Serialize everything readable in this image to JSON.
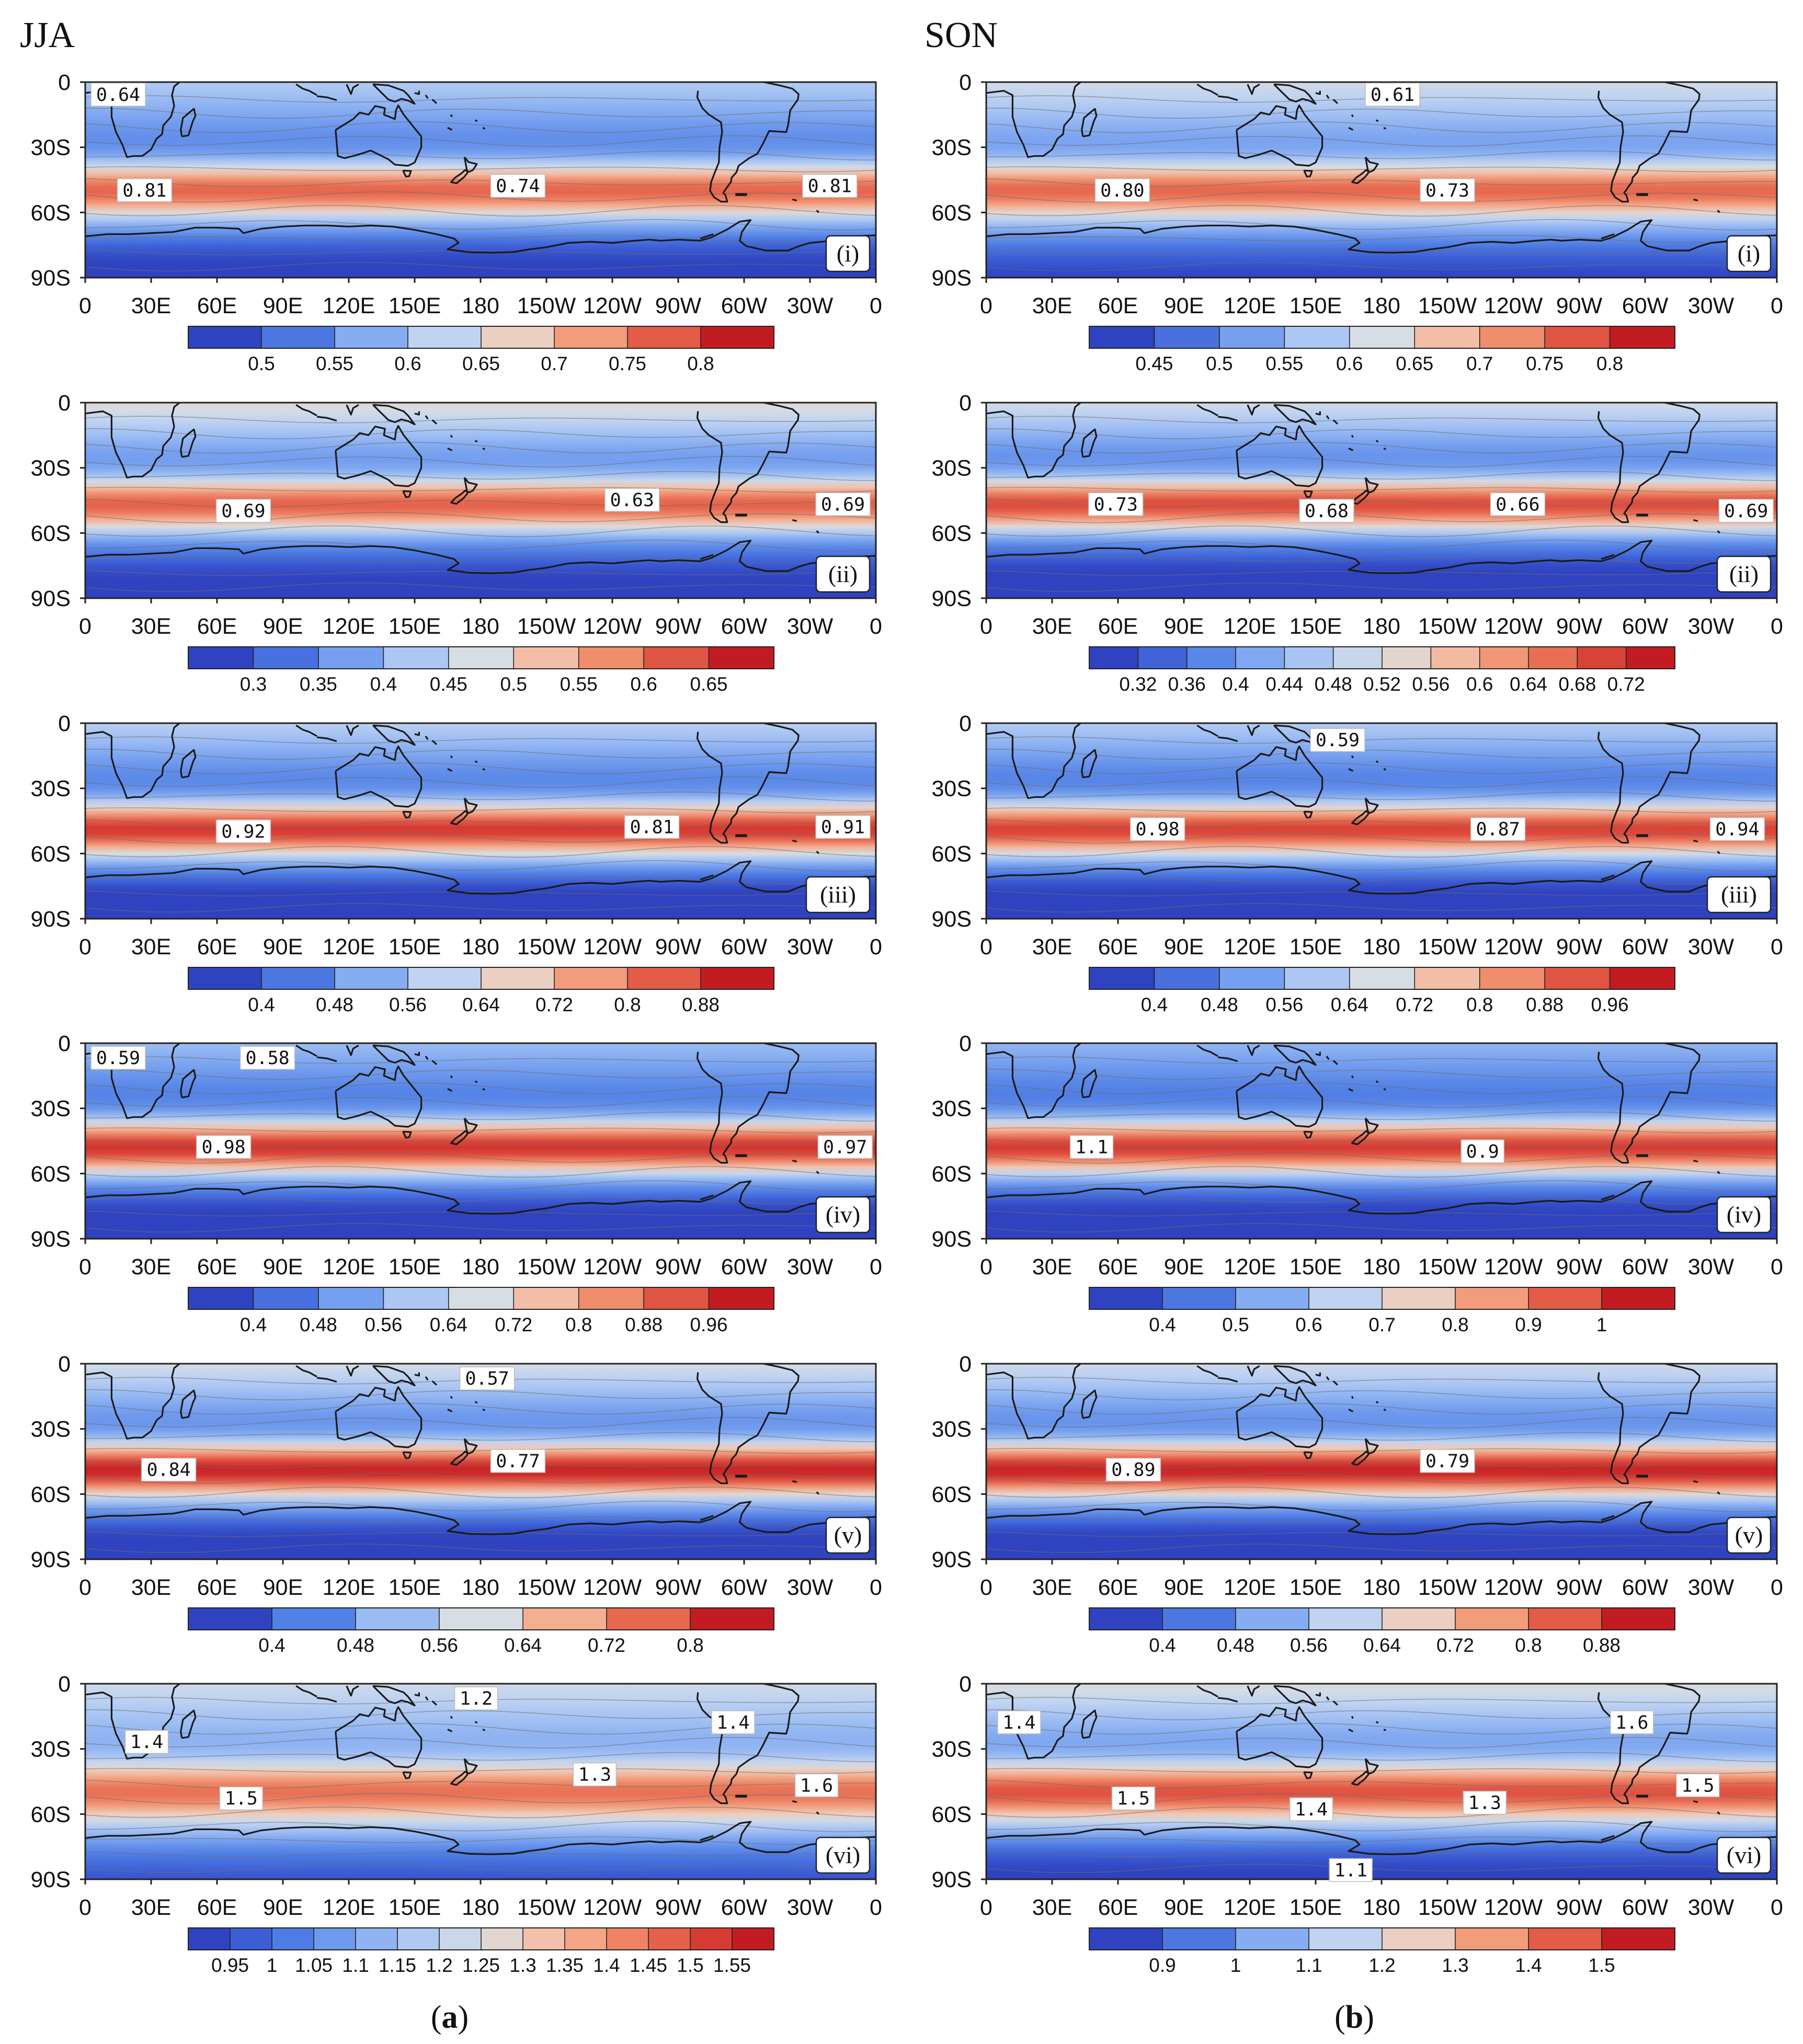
{
  "figure": {
    "columns": [
      {
        "title": "JJA",
        "sub_label_pre": "(",
        "sub_label_letter": "a",
        "sub_label_post": ")"
      },
      {
        "title": "SON",
        "sub_label_pre": "(",
        "sub_label_letter": "b",
        "sub_label_post": ")"
      }
    ],
    "colors": {
      "ramp": [
        "#2f43c0",
        "#3d5fd6",
        "#5281e6",
        "#76a0ef",
        "#9bbcf3",
        "#bcd1f2",
        "#d6dde4",
        "#efcdbb",
        "#f4af92",
        "#f08d6c",
        "#e6684f",
        "#d83f35",
        "#c21c22"
      ]
    }
  },
  "chart_data": [
    {
      "id": "a-i",
      "type": "filled-contour-map",
      "column": "JJA",
      "panel_label": "(i)",
      "xlim": [
        0,
        360
      ],
      "ylim": [
        -90,
        0
      ],
      "x_tick_labels": [
        "0",
        "30E",
        "60E",
        "90E",
        "120E",
        "150E",
        "180",
        "150W",
        "120W",
        "90W",
        "60W",
        "30W",
        "0"
      ],
      "y_tick_labels": [
        "0",
        "30S",
        "60S",
        "90S"
      ],
      "colorbar": {
        "levels": [
          0.5,
          0.55,
          0.6,
          0.65,
          0.7,
          0.75,
          0.8
        ],
        "labels": [
          "0.5",
          "0.55",
          "0.6",
          "0.65",
          "0.7",
          "0.75",
          "0.8"
        ]
      },
      "contour_labels": [
        {
          "text": "0.64",
          "lon": 15,
          "lat": -6
        },
        {
          "text": "0.81",
          "lon": 27,
          "lat": -50
        },
        {
          "text": "0.74",
          "lon": 197,
          "lat": -48
        },
        {
          "text": "0.81",
          "lon": 339,
          "lat": -48
        }
      ],
      "field": {
        "baseline": 0.49,
        "band": {
          "center_lat": -50,
          "amplitude": 0.27,
          "width": 13
        },
        "north_shift": 0.1,
        "max_color_value": 0.82
      }
    },
    {
      "id": "b-i",
      "type": "filled-contour-map",
      "column": "SON",
      "panel_label": "(i)",
      "xlim": [
        0,
        360
      ],
      "ylim": [
        -90,
        0
      ],
      "x_tick_labels": [
        "0",
        "30E",
        "60E",
        "90E",
        "120E",
        "150E",
        "180",
        "150W",
        "120W",
        "90W",
        "60W",
        "30W",
        "0"
      ],
      "y_tick_labels": [
        "0",
        "30S",
        "60S",
        "90S"
      ],
      "colorbar": {
        "levels": [
          0.45,
          0.5,
          0.55,
          0.6,
          0.65,
          0.7,
          0.75,
          0.8
        ],
        "labels": [
          "0.45",
          "0.5",
          "0.55",
          "0.6",
          "0.65",
          "0.7",
          "0.75",
          "0.8"
        ]
      },
      "contour_labels": [
        {
          "text": "0.61",
          "lon": 185,
          "lat": -6
        },
        {
          "text": "0.80",
          "lon": 62,
          "lat": -50
        },
        {
          "text": "0.73",
          "lon": 210,
          "lat": -50
        }
      ],
      "field": {
        "baseline": 0.47,
        "band": {
          "center_lat": -50,
          "amplitude": 0.28,
          "width": 13
        },
        "north_shift": 0.13,
        "max_color_value": 0.82
      }
    },
    {
      "id": "a-ii",
      "type": "filled-contour-map",
      "column": "JJA",
      "panel_label": "(ii)",
      "xlim": [
        0,
        360
      ],
      "ylim": [
        -90,
        0
      ],
      "x_tick_labels": [
        "0",
        "30E",
        "60E",
        "90E",
        "120E",
        "150E",
        "180",
        "150W",
        "120W",
        "90W",
        "60W",
        "30W",
        "0"
      ],
      "y_tick_labels": [
        "0",
        "30S",
        "60S",
        "90S"
      ],
      "colorbar": {
        "levels": [
          0.3,
          0.35,
          0.4,
          0.45,
          0.5,
          0.55,
          0.6,
          0.65
        ],
        "labels": [
          "0.3",
          "0.35",
          "0.4",
          "0.45",
          "0.5",
          "0.55",
          "0.6",
          "0.65"
        ]
      },
      "contour_labels": [
        {
          "text": "0.69",
          "lon": 72,
          "lat": -50
        },
        {
          "text": "0.63",
          "lon": 249,
          "lat": -45
        },
        {
          "text": "0.69",
          "lon": 345,
          "lat": -47
        }
      ],
      "field": {
        "baseline": 0.29,
        "band": {
          "center_lat": -47,
          "amplitude": 0.34,
          "width": 13
        },
        "north_shift": 0.2,
        "max_color_value": 0.7
      }
    },
    {
      "id": "b-ii",
      "type": "filled-contour-map",
      "column": "SON",
      "panel_label": "(ii)",
      "xlim": [
        0,
        360
      ],
      "ylim": [
        -90,
        0
      ],
      "x_tick_labels": [
        "0",
        "30E",
        "60E",
        "90E",
        "120E",
        "150E",
        "180",
        "150W",
        "120W",
        "90W",
        "60W",
        "30W",
        "0"
      ],
      "y_tick_labels": [
        "0",
        "30S",
        "60S",
        "90S"
      ],
      "colorbar": {
        "levels": [
          0.32,
          0.36,
          0.4,
          0.44,
          0.48,
          0.52,
          0.56,
          0.6,
          0.64,
          0.68,
          0.72
        ],
        "labels": [
          "0.32",
          "0.36",
          "0.4",
          "0.44",
          "0.48",
          "0.52",
          "0.56",
          "0.6",
          "0.64",
          "0.68",
          "0.72"
        ]
      },
      "contour_labels": [
        {
          "text": "0.73",
          "lon": 59,
          "lat": -47
        },
        {
          "text": "0.68",
          "lon": 155,
          "lat": -50
        },
        {
          "text": "0.66",
          "lon": 242,
          "lat": -47
        },
        {
          "text": "0.69",
          "lon": 346,
          "lat": -50
        }
      ],
      "field": {
        "baseline": 0.31,
        "band": {
          "center_lat": -47,
          "amplitude": 0.38,
          "width": 13
        },
        "north_shift": 0.19,
        "max_color_value": 0.74
      }
    },
    {
      "id": "a-iii",
      "type": "filled-contour-map",
      "column": "JJA",
      "panel_label": "(iii)",
      "xlim": [
        0,
        360
      ],
      "ylim": [
        -90,
        0
      ],
      "x_tick_labels": [
        "0",
        "30E",
        "60E",
        "90E",
        "120E",
        "150E",
        "180",
        "150W",
        "120W",
        "90W",
        "60W",
        "30W",
        "0"
      ],
      "y_tick_labels": [
        "0",
        "30S",
        "60S",
        "90S"
      ],
      "colorbar": {
        "levels": [
          0.4,
          0.48,
          0.56,
          0.64,
          0.72,
          0.8,
          0.88
        ],
        "labels": [
          "0.4",
          "0.48",
          "0.56",
          "0.64",
          "0.72",
          "0.8",
          "0.88"
        ]
      },
      "contour_labels": [
        {
          "text": "0.92",
          "lon": 72,
          "lat": -50
        },
        {
          "text": "0.81",
          "lon": 258,
          "lat": -48
        },
        {
          "text": "0.91",
          "lon": 345,
          "lat": -48
        }
      ],
      "field": {
        "baseline": 0.36,
        "band": {
          "center_lat": -49,
          "amplitude": 0.52,
          "width": 13
        },
        "north_shift": 0.2,
        "max_color_value": 0.92
      }
    },
    {
      "id": "b-iii",
      "type": "filled-contour-map",
      "column": "SON",
      "panel_label": "(iii)",
      "xlim": [
        0,
        360
      ],
      "ylim": [
        -90,
        0
      ],
      "x_tick_labels": [
        "0",
        "30E",
        "60E",
        "90E",
        "120E",
        "150E",
        "180",
        "150W",
        "120W",
        "90W",
        "60W",
        "30W",
        "0"
      ],
      "y_tick_labels": [
        "0",
        "30S",
        "60S",
        "90S"
      ],
      "colorbar": {
        "levels": [
          0.4,
          0.48,
          0.56,
          0.64,
          0.72,
          0.8,
          0.88,
          0.96
        ],
        "labels": [
          "0.4",
          "0.48",
          "0.56",
          "0.64",
          "0.72",
          "0.8",
          "0.88",
          "0.96"
        ]
      },
      "contour_labels": [
        {
          "text": "0.59",
          "lon": 160,
          "lat": -8
        },
        {
          "text": "0.98",
          "lon": 78,
          "lat": -49
        },
        {
          "text": "0.87",
          "lon": 233,
          "lat": -49
        },
        {
          "text": "0.94",
          "lon": 342,
          "lat": -49
        }
      ],
      "field": {
        "baseline": 0.36,
        "band": {
          "center_lat": -49,
          "amplitude": 0.58,
          "width": 13
        },
        "north_shift": 0.22,
        "max_color_value": 1.0
      }
    },
    {
      "id": "a-iv",
      "type": "filled-contour-map",
      "column": "JJA",
      "panel_label": "(iv)",
      "xlim": [
        0,
        360
      ],
      "ylim": [
        -90,
        0
      ],
      "x_tick_labels": [
        "0",
        "30E",
        "60E",
        "90E",
        "120E",
        "150E",
        "180",
        "150W",
        "120W",
        "90W",
        "60W",
        "30W",
        "0"
      ],
      "y_tick_labels": [
        "0",
        "30S",
        "60S",
        "90S"
      ],
      "colorbar": {
        "levels": [
          0.4,
          0.48,
          0.56,
          0.64,
          0.72,
          0.8,
          0.88,
          0.96
        ],
        "labels": [
          "0.4",
          "0.48",
          "0.56",
          "0.64",
          "0.72",
          "0.8",
          "0.88",
          "0.96"
        ]
      },
      "contour_labels": [
        {
          "text": "0.59",
          "lon": 15,
          "lat": -7
        },
        {
          "text": "0.58",
          "lon": 83,
          "lat": -7
        },
        {
          "text": "0.98",
          "lon": 63,
          "lat": -48
        },
        {
          "text": "0.97",
          "lon": 346,
          "lat": -48
        }
      ],
      "field": {
        "baseline": 0.36,
        "band": {
          "center_lat": -48,
          "amplitude": 0.6,
          "width": 13
        },
        "north_shift": 0.18,
        "max_color_value": 1.0
      }
    },
    {
      "id": "b-iv",
      "type": "filled-contour-map",
      "column": "SON",
      "panel_label": "(iv)",
      "xlim": [
        0,
        360
      ],
      "ylim": [
        -90,
        0
      ],
      "x_tick_labels": [
        "0",
        "30E",
        "60E",
        "90E",
        "120E",
        "150E",
        "180",
        "150W",
        "120W",
        "90W",
        "60W",
        "30W",
        "0"
      ],
      "y_tick_labels": [
        "0",
        "30S",
        "60S",
        "90S"
      ],
      "colorbar": {
        "levels": [
          0.4,
          0.5,
          0.6,
          0.7,
          0.8,
          0.9,
          1
        ],
        "labels": [
          "0.4",
          "0.5",
          "0.6",
          "0.7",
          "0.8",
          "0.9",
          "1"
        ]
      },
      "contour_labels": [
        {
          "text": "1.1",
          "lon": 48,
          "lat": -48
        },
        {
          "text": "0.9",
          "lon": 226,
          "lat": -50
        }
      ],
      "field": {
        "baseline": 0.34,
        "band": {
          "center_lat": -48,
          "amplitude": 0.7,
          "width": 13
        },
        "north_shift": 0.2,
        "max_color_value": 1.1
      }
    },
    {
      "id": "a-v",
      "type": "filled-contour-map",
      "column": "JJA",
      "panel_label": "(v)",
      "xlim": [
        0,
        360
      ],
      "ylim": [
        -90,
        0
      ],
      "x_tick_labels": [
        "0",
        "30E",
        "60E",
        "90E",
        "120E",
        "150E",
        "180",
        "150W",
        "120W",
        "90W",
        "60W",
        "30W",
        "0"
      ],
      "y_tick_labels": [
        "0",
        "30S",
        "60S",
        "90S"
      ],
      "colorbar": {
        "levels": [
          0.4,
          0.48,
          0.56,
          0.64,
          0.72,
          0.8
        ],
        "labels": [
          "0.4",
          "0.48",
          "0.56",
          "0.64",
          "0.72",
          "0.8"
        ]
      },
      "contour_labels": [
        {
          "text": "0.57",
          "lon": 183,
          "lat": -7
        },
        {
          "text": "0.84",
          "lon": 38,
          "lat": -49
        },
        {
          "text": "0.77",
          "lon": 197,
          "lat": -45
        }
      ],
      "field": {
        "baseline": 0.37,
        "band": {
          "center_lat": -49,
          "amplitude": 0.5,
          "width": 13
        },
        "north_shift": 0.22,
        "max_color_value": 0.88
      }
    },
    {
      "id": "b-v",
      "type": "filled-contour-map",
      "column": "SON",
      "panel_label": "(v)",
      "xlim": [
        0,
        360
      ],
      "ylim": [
        -90,
        0
      ],
      "x_tick_labels": [
        "0",
        "30E",
        "60E",
        "90E",
        "120E",
        "150E",
        "180",
        "150W",
        "120W",
        "90W",
        "60W",
        "30W",
        "0"
      ],
      "y_tick_labels": [
        "0",
        "30S",
        "60S",
        "90S"
      ],
      "colorbar": {
        "levels": [
          0.4,
          0.48,
          0.56,
          0.64,
          0.72,
          0.8,
          0.88
        ],
        "labels": [
          "0.4",
          "0.48",
          "0.56",
          "0.64",
          "0.72",
          "0.8",
          "0.88"
        ]
      },
      "contour_labels": [
        {
          "text": "0.89",
          "lon": 67,
          "lat": -49
        },
        {
          "text": "0.79",
          "lon": 210,
          "lat": -45
        }
      ],
      "field": {
        "baseline": 0.37,
        "band": {
          "center_lat": -49,
          "amplitude": 0.54,
          "width": 13
        },
        "north_shift": 0.23,
        "max_color_value": 0.92
      }
    },
    {
      "id": "a-vi",
      "type": "filled-contour-map",
      "column": "JJA",
      "panel_label": "(vi)",
      "xlim": [
        0,
        360
      ],
      "ylim": [
        -90,
        0
      ],
      "x_tick_labels": [
        "0",
        "30E",
        "60E",
        "90E",
        "120E",
        "150E",
        "180",
        "150W",
        "120W",
        "90W",
        "60W",
        "30W",
        "0"
      ],
      "y_tick_labels": [
        "0",
        "30S",
        "60S",
        "90S"
      ],
      "colorbar": {
        "levels": [
          0.95,
          1,
          1.05,
          1.1,
          1.15,
          1.2,
          1.25,
          1.3,
          1.35,
          1.4,
          1.45,
          1.5,
          1.55
        ],
        "labels": [
          "0.95",
          "1",
          "1.05",
          "1.1",
          "1.15",
          "1.2",
          "1.25",
          "1.3",
          "1.35",
          "1.4",
          "1.45",
          "1.5",
          "1.55"
        ]
      },
      "contour_labels": [
        {
          "text": "1.2",
          "lon": 178,
          "lat": -7
        },
        {
          "text": "1.4",
          "lon": 28,
          "lat": -27
        },
        {
          "text": "1.4",
          "lon": 295,
          "lat": -18
        },
        {
          "text": "1.5",
          "lon": 71,
          "lat": -53
        },
        {
          "text": "1.3",
          "lon": 232,
          "lat": -42
        },
        {
          "text": "1.6",
          "lon": 333,
          "lat": -47
        }
      ],
      "field": {
        "baseline": 1.05,
        "band": {
          "center_lat": -50,
          "amplitude": 0.42,
          "width": 14
        },
        "north_shift": 0.18,
        "max_color_value": 1.6
      }
    },
    {
      "id": "b-vi",
      "type": "filled-contour-map",
      "column": "SON",
      "panel_label": "(vi)",
      "xlim": [
        0,
        360
      ],
      "ylim": [
        -90,
        0
      ],
      "x_tick_labels": [
        "0",
        "30E",
        "60E",
        "90E",
        "120E",
        "150E",
        "180",
        "150W",
        "120W",
        "90W",
        "60W",
        "30W",
        "0"
      ],
      "y_tick_labels": [
        "0",
        "30S",
        "60S",
        "90S"
      ],
      "colorbar": {
        "levels": [
          0.9,
          1,
          1.1,
          1.2,
          1.3,
          1.4,
          1.5
        ],
        "labels": [
          "0.9",
          "1",
          "1.1",
          "1.2",
          "1.3",
          "1.4",
          "1.5"
        ]
      },
      "contour_labels": [
        {
          "text": "1.4",
          "lon": 15,
          "lat": -18
        },
        {
          "text": "1.6",
          "lon": 294,
          "lat": -18
        },
        {
          "text": "1.5",
          "lon": 67,
          "lat": -53
        },
        {
          "text": "1.4",
          "lon": 148,
          "lat": -58
        },
        {
          "text": "1.3",
          "lon": 227,
          "lat": -55
        },
        {
          "text": "1.5",
          "lon": 324,
          "lat": -47
        },
        {
          "text": "1.1",
          "lon": 166,
          "lat": -86
        }
      ],
      "field": {
        "baseline": 0.92,
        "band": {
          "center_lat": -50,
          "amplitude": 0.6,
          "width": 14
        },
        "north_shift": 0.3,
        "max_color_value": 1.62
      }
    }
  ]
}
